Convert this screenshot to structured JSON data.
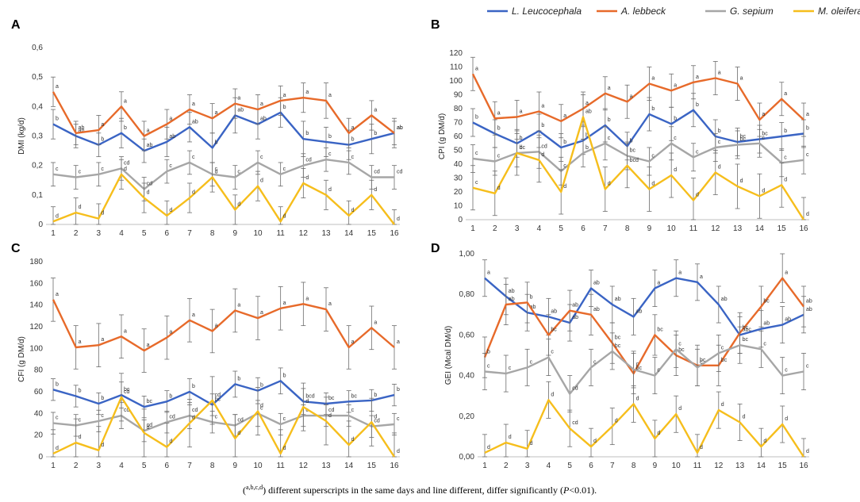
{
  "legend": {
    "items": [
      {
        "name": "L. Leucocephala",
        "color": "#3a64c4"
      },
      {
        "name": "A. lebbeck",
        "color": "#e76a2a"
      },
      {
        "name": "G. sepium",
        "color": "#a6a6a6"
      },
      {
        "name": "M. oleifera",
        "color": "#f6be1c"
      }
    ]
  },
  "footnote": {
    "superscript_sample": "a,b,c,d",
    "text": ") different superscripts in the same days and line different, differ significantly (",
    "p": "P",
    "pval": "<0.01)."
  },
  "chart_data": [
    {
      "id": "A",
      "type": "line",
      "ylabel": "DMI (kg/d)",
      "ylim": [
        0,
        0.6
      ],
      "yticks": [
        "0",
        "0,1",
        "0,2",
        "0,3",
        "0,4",
        "0,5",
        "0,6"
      ],
      "x": [
        1,
        2,
        3,
        4,
        5,
        6,
        7,
        8,
        9,
        10,
        11,
        12,
        13,
        14,
        15,
        16
      ],
      "series": [
        {
          "name": "L. Leucocephala",
          "color": "#3a64c4",
          "values": [
            0.34,
            0.3,
            0.27,
            0.31,
            0.25,
            0.28,
            0.33,
            0.26,
            0.37,
            0.34,
            0.38,
            0.29,
            0.28,
            0.27,
            0.29,
            0.31
          ],
          "err": [
            0.05,
            0.04,
            0.04,
            0.05,
            0.04,
            0.05,
            0.05,
            0.05,
            0.06,
            0.05,
            0.05,
            0.06,
            0.05,
            0.05,
            0.05,
            0.05
          ],
          "sup": [
            "b",
            "ab",
            "b",
            "b",
            "ab",
            "ab",
            "ab",
            "b",
            "ab",
            "ab",
            "b",
            "b",
            "b",
            "b",
            "b",
            "ab"
          ]
        },
        {
          "name": "A. lebbeck",
          "color": "#e76a2a",
          "values": [
            0.45,
            0.31,
            0.32,
            0.4,
            0.3,
            0.34,
            0.39,
            0.36,
            0.41,
            0.39,
            0.42,
            0.43,
            0.42,
            0.31,
            0.37,
            0.31
          ],
          "err": [
            0.05,
            0.04,
            0.05,
            0.05,
            0.05,
            0.05,
            0.05,
            0.05,
            0.05,
            0.05,
            0.05,
            0.05,
            0.06,
            0.05,
            0.05,
            0.04
          ],
          "sup": [
            "a",
            "ab",
            "a",
            "a",
            "a",
            "a",
            "a",
            "a",
            "a",
            "a",
            "a",
            "a",
            "a",
            "a",
            "a",
            "ab"
          ]
        },
        {
          "name": "G. sepium",
          "color": "#a6a6a6",
          "values": [
            0.17,
            0.16,
            0.17,
            0.19,
            0.12,
            0.18,
            0.21,
            0.17,
            0.16,
            0.21,
            0.17,
            0.2,
            0.22,
            0.21,
            0.16,
            0.16
          ],
          "err": [
            0.04,
            0.04,
            0.04,
            0.04,
            0.04,
            0.04,
            0.04,
            0.04,
            0.04,
            0.04,
            0.04,
            0.04,
            0.04,
            0.04,
            0.04,
            0.04
          ],
          "sup": [
            "c",
            "c",
            "c",
            "cd",
            "cd",
            "c",
            "c",
            "c",
            "c",
            "c",
            "c",
            "cd",
            "c",
            "c",
            "cd",
            "cd"
          ]
        },
        {
          "name": "M. oleifera",
          "color": "#f6be1c",
          "values": [
            0.01,
            0.04,
            0.02,
            0.17,
            0.09,
            0.03,
            0.09,
            0.16,
            0.05,
            0.13,
            0.01,
            0.14,
            0.1,
            0.03,
            0.1,
            0.0
          ],
          "err": [
            0.05,
            0.05,
            0.05,
            0.05,
            0.05,
            0.05,
            0.05,
            0.05,
            0.05,
            0.05,
            0.05,
            0.05,
            0.05,
            0.05,
            0.05,
            0.05
          ],
          "sup": [
            "d",
            "d",
            "d",
            "d",
            "d",
            "d",
            "d",
            "d",
            "d",
            "d",
            "d",
            "d",
            "d",
            "d",
            "d",
            "d"
          ]
        }
      ]
    },
    {
      "id": "B",
      "type": "line",
      "ylabel": "CPI (g DM/d)",
      "ylim": [
        0,
        120
      ],
      "yticks": [
        "0",
        "10",
        "20",
        "30",
        "40",
        "50",
        "60",
        "70",
        "80",
        "90",
        "100",
        "110",
        "120"
      ],
      "x": [
        1,
        2,
        3,
        4,
        5,
        6,
        7,
        8,
        9,
        10,
        11,
        12,
        13,
        14,
        15,
        16
      ],
      "series": [
        {
          "name": "L. Leucocephala",
          "color": "#3a64c4",
          "values": [
            70,
            62,
            55,
            64,
            52,
            57,
            68,
            53,
            76,
            69,
            79,
            60,
            56,
            58,
            60,
            62
          ],
          "err": [
            10,
            10,
            10,
            12,
            10,
            10,
            12,
            10,
            12,
            12,
            12,
            12,
            10,
            10,
            10,
            10
          ],
          "sup": [
            "b",
            "b",
            "b",
            "b",
            "b",
            "b",
            "b",
            "b",
            "b",
            "b",
            "b",
            "b",
            "bc",
            "bc",
            "b",
            "b"
          ]
        },
        {
          "name": "A. lebbeck",
          "color": "#e76a2a",
          "values": [
            105,
            73,
            74,
            78,
            71,
            80,
            91,
            85,
            98,
            93,
            99,
            102,
            98,
            72,
            87,
            72
          ],
          "err": [
            12,
            12,
            12,
            14,
            12,
            12,
            12,
            12,
            12,
            12,
            12,
            12,
            12,
            12,
            12,
            12
          ],
          "sup": [
            "a",
            "a",
            "a",
            "a",
            "a",
            "a",
            "a",
            "a",
            "a",
            "a",
            "a",
            "a",
            "a",
            "a",
            "a",
            "a"
          ]
        },
        {
          "name": "G. sepium",
          "color": "#a6a6a6",
          "values": [
            44,
            42,
            48,
            49,
            35,
            48,
            55,
            46,
            42,
            55,
            45,
            52,
            54,
            55,
            41,
            43
          ],
          "err": [
            10,
            10,
            10,
            12,
            10,
            10,
            12,
            10,
            10,
            12,
            10,
            10,
            10,
            10,
            10,
            10
          ],
          "sup": [
            "c",
            "c",
            "bc",
            "cd",
            "c",
            "b",
            "c",
            "bc",
            "c",
            "c",
            "c",
            "c",
            "bc",
            "c",
            "c",
            "c"
          ]
        },
        {
          "name": "M. oleifera",
          "color": "#f6be1c",
          "values": [
            23,
            19,
            48,
            43,
            20,
            74,
            22,
            39,
            22,
            32,
            14,
            34,
            24,
            17,
            25,
            0
          ],
          "err": [
            16,
            16,
            16,
            16,
            16,
            16,
            16,
            16,
            16,
            16,
            16,
            16,
            16,
            16,
            16,
            16
          ],
          "sup": [
            "c",
            "d",
            "d",
            "d",
            "d",
            "ab",
            "d",
            "bcd",
            "d",
            "d",
            "d",
            "d",
            "d",
            "d",
            "d",
            "d"
          ]
        }
      ]
    },
    {
      "id": "C",
      "type": "line",
      "ylabel": "CFI (g DM/d)",
      "ylim": [
        0,
        180
      ],
      "yticks": [
        "0",
        "20",
        "40",
        "60",
        "80",
        "100",
        "120",
        "140",
        "160",
        "180"
      ],
      "x": [
        1,
        2,
        3,
        4,
        5,
        6,
        7,
        8,
        9,
        10,
        11,
        12,
        13,
        14,
        15,
        16
      ],
      "series": [
        {
          "name": "L. Leucocephala",
          "color": "#3a64c4",
          "values": [
            62,
            56,
            49,
            57,
            46,
            51,
            60,
            48,
            67,
            61,
            70,
            51,
            49,
            51,
            52,
            57
          ],
          "err": [
            10,
            10,
            10,
            12,
            10,
            10,
            12,
            10,
            12,
            12,
            12,
            12,
            10,
            10,
            10,
            10
          ],
          "sup": [
            "b",
            "b",
            "b",
            "bc",
            "bc",
            "b",
            "b",
            "bc",
            "b",
            "b",
            "b",
            "bcd",
            "bc",
            "bc",
            "b",
            "b"
          ]
        },
        {
          "name": "A. lebbeck",
          "color": "#e76a2a",
          "values": [
            145,
            101,
            103,
            111,
            98,
            110,
            126,
            116,
            135,
            128,
            137,
            141,
            136,
            101,
            119,
            101
          ],
          "err": [
            20,
            20,
            20,
            20,
            20,
            20,
            20,
            20,
            20,
            20,
            20,
            20,
            20,
            20,
            20,
            20
          ],
          "sup": [
            "a",
            "a",
            "a",
            "a",
            "a",
            "a",
            "a",
            "a",
            "a",
            "a",
            "a",
            "a",
            "a",
            "a",
            "a",
            "a"
          ]
        },
        {
          "name": "G. sepium",
          "color": "#a6a6a6",
          "values": [
            31,
            29,
            33,
            38,
            24,
            32,
            38,
            32,
            29,
            40,
            30,
            38,
            38,
            38,
            28,
            30
          ],
          "err": [
            10,
            10,
            10,
            12,
            10,
            10,
            12,
            10,
            10,
            12,
            10,
            10,
            10,
            10,
            10,
            10
          ],
          "sup": [
            "c",
            "c",
            "c",
            "cd",
            "cd",
            "cd",
            "cd",
            "c",
            "cd",
            "c",
            "c",
            "c",
            "cd",
            "c",
            "cd",
            "c"
          ]
        },
        {
          "name": "M. oleifera",
          "color": "#f6be1c",
          "values": [
            3,
            13,
            6,
            55,
            22,
            9,
            31,
            52,
            17,
            42,
            3,
            46,
            33,
            11,
            32,
            0
          ],
          "err": [
            22,
            22,
            22,
            22,
            22,
            22,
            22,
            22,
            22,
            22,
            22,
            22,
            22,
            22,
            22,
            22
          ],
          "sup": [
            "d",
            "d",
            "d",
            "cd",
            "d",
            "d",
            "d",
            "cd",
            "d",
            "d",
            "d",
            "d",
            "d",
            "d",
            "d",
            "d"
          ]
        }
      ]
    },
    {
      "id": "D",
      "type": "line",
      "ylabel": "GEI (Mcal DM/d)",
      "ylim": [
        0,
        1.0
      ],
      "yticks": [
        "0,00",
        "0,20",
        "0,40",
        "0,60",
        "0,80",
        "1,00"
      ],
      "x": [
        1,
        2,
        3,
        4,
        5,
        6,
        7,
        8,
        9,
        10,
        11,
        12,
        13,
        14,
        15,
        16
      ],
      "series": [
        {
          "name": "L. Leucocephala",
          "color": "#3a64c4",
          "values": [
            0.88,
            0.79,
            0.71,
            0.69,
            0.66,
            0.83,
            0.75,
            0.69,
            0.83,
            0.88,
            0.86,
            0.75,
            0.6,
            0.63,
            0.65,
            0.7
          ],
          "err": [
            0.09,
            0.09,
            0.09,
            0.09,
            0.09,
            0.09,
            0.09,
            0.09,
            0.09,
            0.09,
            0.09,
            0.09,
            0.09,
            0.09,
            0.09,
            0.09
          ],
          "sup": [
            "a",
            "ab",
            "ab",
            "ab",
            "ab",
            "ab",
            "ab",
            "ab",
            "a",
            "a",
            "a",
            "ab",
            "abc",
            "ab",
            "ab",
            "ab"
          ]
        },
        {
          "name": "A. lebbeck",
          "color": "#e76a2a",
          "values": [
            0.49,
            0.75,
            0.76,
            0.6,
            0.72,
            0.7,
            0.56,
            0.41,
            0.6,
            0.5,
            0.45,
            0.45,
            0.61,
            0.74,
            0.88,
            0.74
          ],
          "err": [
            0.1,
            0.1,
            0.1,
            0.1,
            0.1,
            0.1,
            0.1,
            0.1,
            0.1,
            0.1,
            0.1,
            0.1,
            0.1,
            0.1,
            0.12,
            0.1
          ],
          "sup": [
            "b",
            "ab",
            "b",
            "bc",
            "ab",
            "ab",
            "bc",
            "bc",
            "bc",
            "bc",
            "bc",
            "bc",
            "bc",
            "bc",
            "a",
            "ab"
          ]
        },
        {
          "name": "G. sepium",
          "color": "#a6a6a6",
          "values": [
            0.42,
            0.41,
            0.44,
            0.49,
            0.31,
            0.44,
            0.52,
            0.43,
            0.4,
            0.53,
            0.44,
            0.51,
            0.55,
            0.53,
            0.4,
            0.42
          ],
          "err": [
            0.09,
            0.09,
            0.09,
            0.09,
            0.09,
            0.09,
            0.09,
            0.09,
            0.09,
            0.09,
            0.09,
            0.09,
            0.09,
            0.09,
            0.09,
            0.09
          ],
          "sup": [
            "c",
            "c",
            "c",
            "c",
            "cd",
            "c",
            "bc",
            "c",
            "c",
            "c",
            "c",
            "c",
            "bc",
            "c",
            "c",
            "c"
          ]
        },
        {
          "name": "M. oleifera",
          "color": "#f6be1c",
          "values": [
            0.02,
            0.07,
            0.04,
            0.28,
            0.14,
            0.05,
            0.15,
            0.26,
            0.09,
            0.21,
            0.02,
            0.23,
            0.17,
            0.05,
            0.16,
            0.0
          ],
          "err": [
            0.09,
            0.09,
            0.09,
            0.09,
            0.09,
            0.09,
            0.09,
            0.09,
            0.09,
            0.09,
            0.09,
            0.09,
            0.09,
            0.09,
            0.09,
            0.09
          ],
          "sup": [
            "d",
            "d",
            "d",
            "d",
            "cd",
            "d",
            "d",
            "d",
            "d",
            "d",
            "d",
            "d",
            "d",
            "d",
            "d",
            "d"
          ]
        }
      ]
    }
  ]
}
